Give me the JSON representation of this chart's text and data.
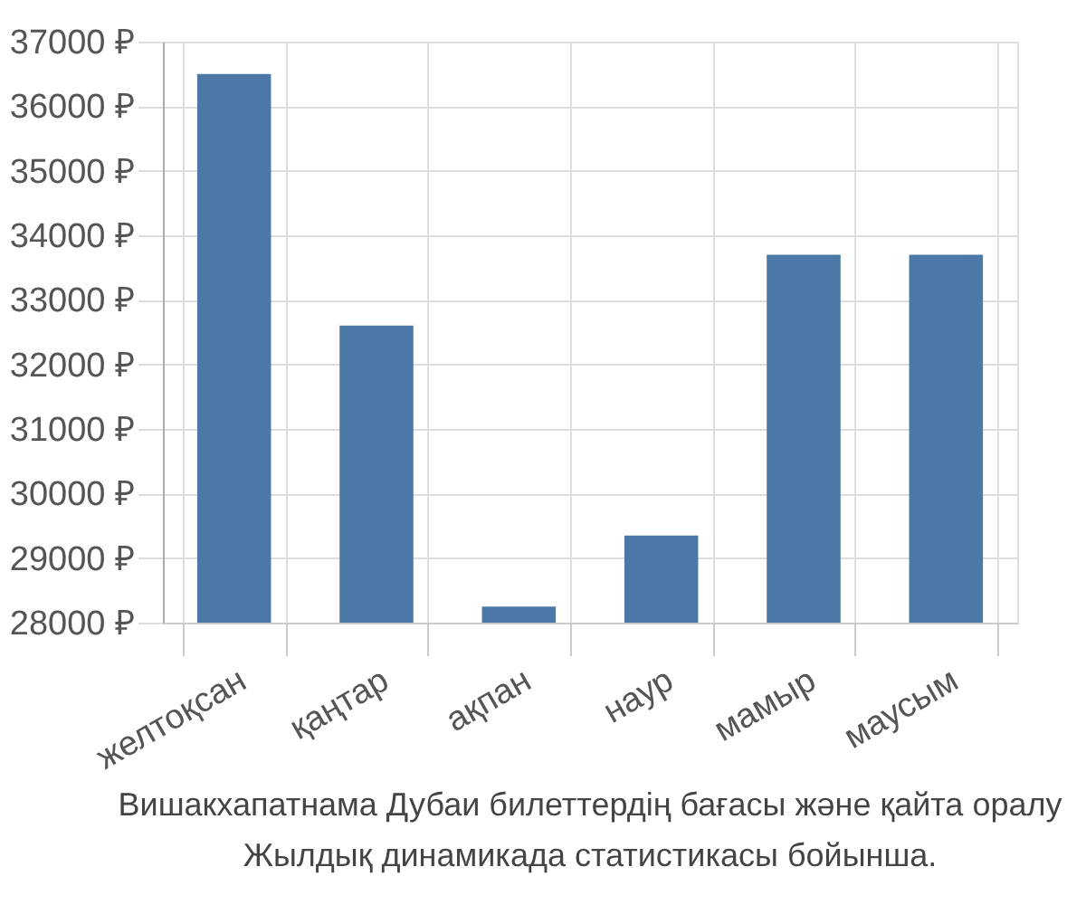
{
  "chart_data": {
    "type": "bar",
    "categories": [
      "желтоқсан",
      "қаңтар",
      "ақпан",
      "наур",
      "мамыр",
      "маусым"
    ],
    "values": [
      36500,
      32600,
      28250,
      29350,
      33700,
      33700
    ],
    "color": "#4c78a8",
    "ylim": [
      28000,
      37000
    ],
    "yticks": [
      {
        "value": 28000,
        "label": "28000 ₽"
      },
      {
        "value": 29000,
        "label": "29000 ₽"
      },
      {
        "value": 30000,
        "label": "30000 ₽"
      },
      {
        "value": 31000,
        "label": "31000 ₽"
      },
      {
        "value": 32000,
        "label": "32000 ₽"
      },
      {
        "value": 33000,
        "label": "33000 ₽"
      },
      {
        "value": 34000,
        "label": "34000 ₽"
      },
      {
        "value": 35000,
        "label": "35000 ₽"
      },
      {
        "value": 36000,
        "label": "36000 ₽"
      },
      {
        "value": 37000,
        "label": "37000 ₽"
      }
    ],
    "grid": true,
    "annotations": [
      "Вишакхапатнама Дубаи билеттердің бағасы және қайта оралу",
      "Жылдық динамикада статистикасы бойынша."
    ]
  }
}
